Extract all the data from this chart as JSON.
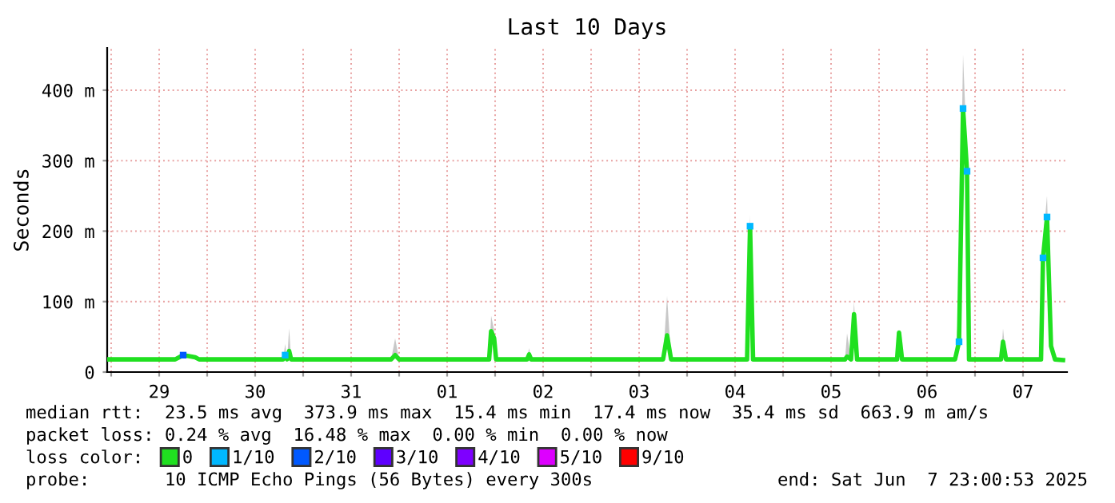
{
  "chart_data": {
    "type": "line",
    "title": "Last 10 Days",
    "ylabel": "Seconds",
    "x": [
      "2025-05-28T23:00",
      "2025-05-29T16:00",
      "2025-05-29T17:00",
      "2025-05-29T18:00",
      "2025-05-29T21:00",
      "2025-05-29T22:00",
      "2025-05-30T19:00",
      "2025-05-30T19:30",
      "2025-05-30T20:00",
      "2025-05-30T20:30",
      "2025-05-30T21:00",
      "2025-05-31T22:00",
      "2025-05-31T23:00",
      "2025-06-01T00:00",
      "2025-06-01T22:30",
      "2025-06-01T23:00",
      "2025-06-01T23:45",
      "2025-06-02T00:15",
      "2025-06-02T08:00",
      "2025-06-02T08:30",
      "2025-06-02T09:00",
      "2025-06-03T18:00",
      "2025-06-03T19:00",
      "2025-06-03T20:00",
      "2025-06-04T15:00",
      "2025-06-04T15:45",
      "2025-06-04T16:30",
      "2025-06-05T15:30",
      "2025-06-05T16:00",
      "2025-06-05T17:00",
      "2025-06-05T17:45",
      "2025-06-05T18:30",
      "2025-06-06T04:30",
      "2025-06-06T05:00",
      "2025-06-06T05:45",
      "2025-06-06T19:00",
      "2025-06-06T20:00",
      "2025-06-06T21:00",
      "2025-06-06T22:00",
      "2025-06-06T22:30",
      "2025-06-07T06:30",
      "2025-06-07T07:00",
      "2025-06-07T07:45",
      "2025-06-07T16:30",
      "2025-06-07T17:00",
      "2025-06-07T18:00",
      "2025-06-07T19:00",
      "2025-06-07T20:00",
      "2025-06-07T22:00"
    ],
    "series": [
      {
        "name": "0",
        "color": "#20e020",
        "values": [
          18,
          18,
          21,
          24,
          21,
          18,
          18,
          24,
          18,
          30,
          18,
          18,
          24,
          18,
          18,
          58,
          48,
          18,
          18,
          25,
          18,
          18,
          52,
          18,
          18,
          207,
          18,
          18,
          22,
          18,
          82,
          18,
          18,
          56,
          18,
          18,
          43,
          374,
          285,
          18,
          18,
          43,
          18,
          18,
          162,
          220,
          37,
          18,
          17
        ],
        "lower": [
          18,
          18,
          21,
          24,
          21,
          18,
          18,
          24,
          18,
          30,
          18,
          18,
          24,
          18,
          18,
          58,
          48,
          18,
          18,
          25,
          18,
          18,
          52,
          18,
          18,
          207,
          18,
          18,
          22,
          18,
          82,
          18,
          18,
          56,
          18,
          18,
          43,
          374,
          285,
          18,
          18,
          43,
          18,
          18,
          162,
          220,
          37,
          18,
          17
        ],
        "upper": [
          18,
          18,
          21,
          24,
          21,
          18,
          18,
          40,
          18,
          62,
          18,
          18,
          48,
          18,
          18,
          80,
          60,
          18,
          18,
          34,
          18,
          18,
          108,
          18,
          18,
          222,
          18,
          18,
          55,
          18,
          100,
          18,
          18,
          58,
          18,
          18,
          95,
          450,
          310,
          18,
          18,
          62,
          18,
          18,
          185,
          250,
          55,
          18,
          17
        ]
      },
      {
        "name": "1/10",
        "type": "scatter",
        "color": "#00b8ff",
        "x": [
          "2025-05-30T19:30",
          "2025-06-04T15:45",
          "2025-06-06T20:00",
          "2025-06-06T21:00",
          "2025-06-06T22:00",
          "2025-06-07T17:00",
          "2025-06-07T18:00"
        ],
        "values": [
          24,
          207,
          43,
          374,
          285,
          162,
          220
        ]
      },
      {
        "name": "2/10",
        "type": "scatter",
        "color": "#0059ff",
        "x": [
          "2025-05-29T18:00"
        ],
        "values": [
          24
        ]
      },
      {
        "name": "3/10",
        "type": "scatter",
        "color": "#5e00ff",
        "values": [
          null,
          null,
          null,
          null,
          null,
          null,
          null,
          null,
          null,
          null,
          null,
          null,
          null,
          null,
          null,
          null,
          null,
          null,
          null,
          null,
          null,
          null,
          null,
          null,
          null,
          null,
          null,
          null,
          null,
          null,
          null,
          null,
          null,
          null,
          null,
          null,
          null,
          null,
          null,
          null,
          null,
          null,
          null,
          null,
          null,
          null,
          null,
          null,
          null
        ]
      },
      {
        "name": "4/10",
        "type": "scatter",
        "color": "#7e00ff",
        "values": [
          null,
          null,
          null,
          null,
          null,
          null,
          null,
          null,
          null,
          null,
          null,
          null,
          null,
          null,
          null,
          null,
          null,
          null,
          null,
          null,
          null,
          null,
          null,
          null,
          null,
          null,
          null,
          null,
          null,
          null,
          null,
          null,
          null,
          null,
          null,
          null,
          null,
          null,
          null,
          null,
          null,
          null,
          null,
          null,
          null,
          null,
          null,
          null,
          null
        ]
      },
      {
        "name": "5/10",
        "type": "scatter",
        "color": "#dd00ff",
        "values": [
          null,
          null,
          null,
          null,
          null,
          null,
          null,
          null,
          null,
          null,
          null,
          null,
          null,
          null,
          null,
          null,
          null,
          null,
          null,
          null,
          null,
          null,
          null,
          null,
          null,
          null,
          null,
          null,
          null,
          null,
          null,
          null,
          null,
          null,
          null,
          null,
          null,
          null,
          null,
          null,
          null,
          null,
          null,
          null,
          null,
          null,
          null,
          null,
          null
        ]
      },
      {
        "name": "9/10",
        "type": "scatter",
        "color": "#ff0000",
        "values": [
          null,
          null,
          null,
          null,
          null,
          null,
          null,
          null,
          null,
          null,
          null,
          null,
          null,
          null,
          null,
          null,
          null,
          null,
          null,
          null,
          null,
          null,
          null,
          null,
          null,
          null,
          null,
          null,
          null,
          null,
          null,
          null,
          null,
          null,
          null,
          null,
          null,
          null,
          null,
          null,
          null,
          null,
          null,
          null,
          null,
          null,
          null,
          null,
          null
        ]
      }
    ],
    "legend_title": "loss color:",
    "legend": "bottom",
    "xlim": [
      "2025-05-28T23:00",
      "2025-06-07T23:00"
    ],
    "xticks": [
      {
        "value": "2025-05-29T00:00",
        "label": null
      },
      {
        "value": "2025-05-29T12:00",
        "label": "29"
      },
      {
        "value": "2025-05-30T00:00",
        "label": null
      },
      {
        "value": "2025-05-30T12:00",
        "label": "30"
      },
      {
        "value": "2025-05-31T00:00",
        "label": null
      },
      {
        "value": "2025-05-31T12:00",
        "label": "31"
      },
      {
        "value": "2025-06-01T00:00",
        "label": null
      },
      {
        "value": "2025-06-01T12:00",
        "label": "01"
      },
      {
        "value": "2025-06-02T00:00",
        "label": null
      },
      {
        "value": "2025-06-02T12:00",
        "label": "02"
      },
      {
        "value": "2025-06-03T00:00",
        "label": null
      },
      {
        "value": "2025-06-03T12:00",
        "label": "03"
      },
      {
        "value": "2025-06-04T00:00",
        "label": null
      },
      {
        "value": "2025-06-04T12:00",
        "label": "04"
      },
      {
        "value": "2025-06-05T00:00",
        "label": null
      },
      {
        "value": "2025-06-05T12:00",
        "label": "05"
      },
      {
        "value": "2025-06-06T00:00",
        "label": null
      },
      {
        "value": "2025-06-06T12:00",
        "label": "06"
      },
      {
        "value": "2025-06-07T00:00",
        "label": null
      },
      {
        "value": "2025-06-07T12:00",
        "label": "07"
      }
    ],
    "ylim": [
      0,
      460
    ],
    "yticks": [
      0,
      {
        "value": 100,
        "label": "100 m"
      },
      {
        "value": 200,
        "label": "200 m"
      },
      {
        "value": 300,
        "label": "300 m"
      },
      {
        "value": 400,
        "label": "400 m"
      }
    ],
    "grid": true,
    "annotations": [
      "median rtt:  23.5 ms avg  373.9 ms max  15.4 ms min  17.4 ms now  35.4 ms sd  663.9 m am/s",
      "packet loss: 0.24 % avg  16.48 % max  0.00 % min  0.00 % now",
      "probe:       10 ICMP Echo Pings (56 Bytes) every 300s",
      "end: Sat Jun  7 23:00:53 2025"
    ]
  }
}
